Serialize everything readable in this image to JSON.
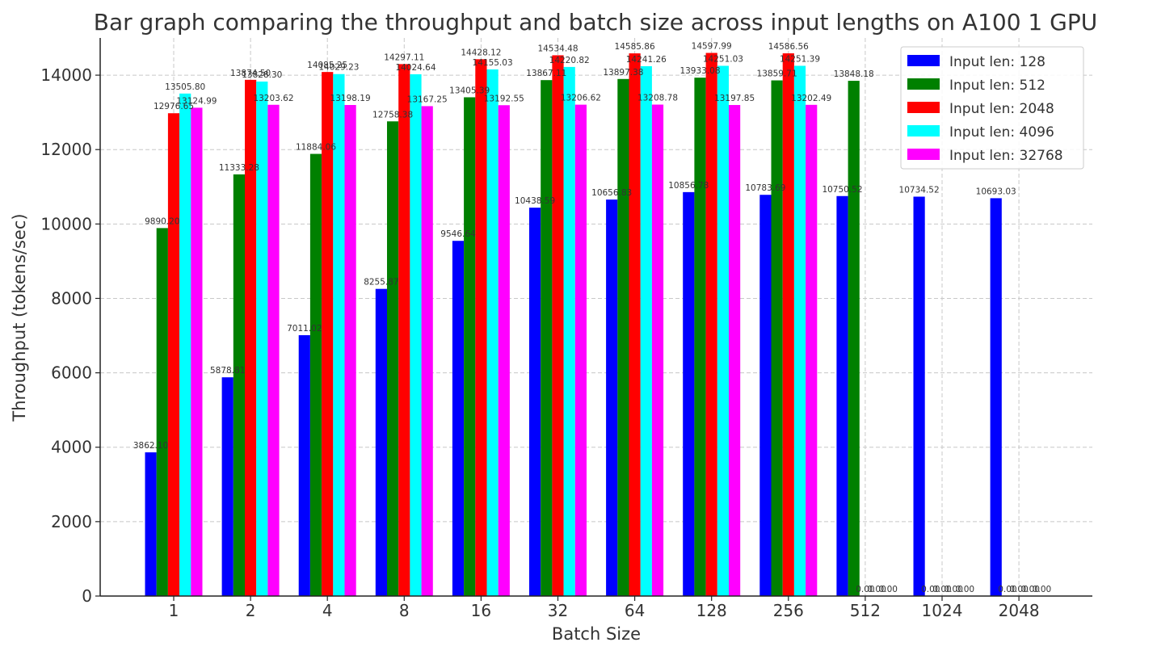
{
  "chart_data": {
    "type": "bar",
    "title": "Bar graph comparing the throughput and batch size across input lengths on A100 1 GPU",
    "xlabel": "Batch Size",
    "ylabel": "Throughput (tokens/sec)",
    "ylim": [
      0,
      15000
    ],
    "yticks": [
      0,
      2000,
      4000,
      6000,
      8000,
      10000,
      12000,
      14000
    ],
    "grid": true,
    "legend_position": "top-right",
    "categories": [
      "1",
      "2",
      "4",
      "8",
      "16",
      "32",
      "64",
      "128",
      "256",
      "512",
      "1024",
      "2048"
    ],
    "series": [
      {
        "name": "Input len: 128",
        "color": "#0000ff",
        "values": [
          3862.1,
          5878.81,
          7011.02,
          8255.87,
          9546.64,
          10438.59,
          10656.83,
          10856.78,
          10783.69,
          10750.52,
          10734.52,
          10693.03
        ]
      },
      {
        "name": "Input len: 512",
        "color": "#008000",
        "values": [
          9890.2,
          11333.28,
          11884.06,
          12758.38,
          13405.39,
          13867.11,
          13897.38,
          13933.08,
          13859.71,
          13848.18,
          0.0,
          0.0
        ]
      },
      {
        "name": "Input len: 2048",
        "color": "#ff0000",
        "values": [
          12976.65,
          13874.5,
          14085.25,
          14297.11,
          14428.12,
          14534.48,
          14585.86,
          14597.99,
          14586.56,
          0.0,
          0.0,
          0.0
        ]
      },
      {
        "name": "Input len: 4096",
        "color": "#00ffff",
        "values": [
          13505.8,
          13828.3,
          14029.23,
          14024.64,
          14155.03,
          14220.82,
          14241.26,
          14251.03,
          14251.39,
          0.0,
          0.0,
          0.0
        ]
      },
      {
        "name": "Input len: 32768",
        "color": "#ff00ff",
        "values": [
          13124.99,
          13203.62,
          13198.19,
          13167.25,
          13192.55,
          13206.62,
          13208.78,
          13197.85,
          13202.49,
          0.0,
          0.0,
          0.0
        ]
      }
    ]
  }
}
